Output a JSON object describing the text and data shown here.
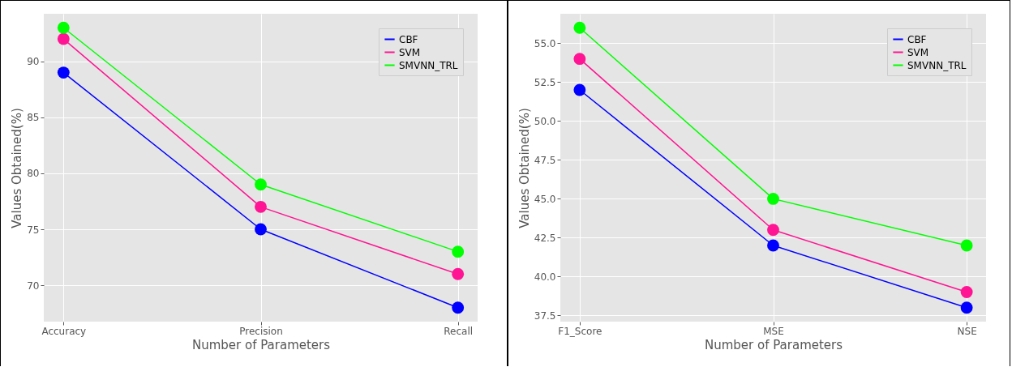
{
  "chart_data": [
    {
      "type": "line",
      "xlabel": "Number of Parameters",
      "ylabel": "Values Obtained(%)",
      "categories": [
        "Accuracy",
        "Precision",
        "Recall"
      ],
      "series": [
        {
          "name": "CBF",
          "color": "#0000ff",
          "values": [
            89,
            75,
            68
          ]
        },
        {
          "name": "SVM",
          "color": "#ff1493",
          "values": [
            92,
            77,
            71
          ]
        },
        {
          "name": "SMVNN_TRL",
          "color": "#00ff00",
          "values": [
            93,
            79,
            73
          ]
        }
      ],
      "ylim": [
        66.75,
        94.25
      ],
      "yticks": [
        70,
        75,
        80,
        85,
        90
      ],
      "grid": true,
      "legend": "top right",
      "marker": "circle",
      "line_style": "solid"
    },
    {
      "type": "line",
      "xlabel": "Number of Parameters",
      "ylabel": "Values Obtained(%)",
      "categories": [
        "F1_Score",
        "MSE",
        "NSE"
      ],
      "series": [
        {
          "name": "CBF",
          "color": "#0000ff",
          "values": [
            52,
            42,
            38
          ]
        },
        {
          "name": "SVM",
          "color": "#ff1493",
          "values": [
            54,
            43,
            39
          ]
        },
        {
          "name": "SMVNN_TRL",
          "color": "#00ff00",
          "values": [
            56,
            45,
            42
          ]
        }
      ],
      "ylim": [
        37.1,
        56.9
      ],
      "yticks": [
        37.5,
        {
          "value": 40,
          "label": "40.0"
        },
        42.5,
        {
          "value": 45,
          "label": "45.0"
        },
        47.5,
        {
          "value": 50,
          "label": "50.0"
        },
        52.5,
        {
          "value": 55,
          "label": "55.0"
        }
      ],
      "grid": true,
      "legend": "top right",
      "marker": "circle",
      "line_style": "solid"
    }
  ]
}
